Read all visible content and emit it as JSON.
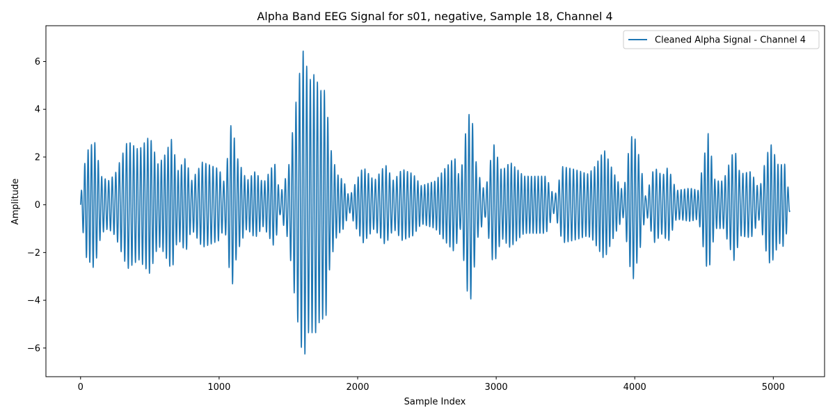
{
  "chart_data": {
    "type": "line",
    "title": "Alpha Band EEG Signal for s01, negative, Sample 18, Channel 4",
    "xlabel": "Sample Index",
    "ylabel": "Amplitude",
    "xlim": [
      -250,
      5370
    ],
    "ylim": [
      -7.2,
      7.5
    ],
    "xticks": [
      0,
      1000,
      2000,
      3000,
      4000,
      5000
    ],
    "yticks": [
      -6,
      -4,
      -2,
      0,
      2,
      4,
      6
    ],
    "grid": false,
    "legend_position": "top-right",
    "series": [
      {
        "name": "Cleaned Alpha Signal - Channel 4",
        "color": "#1f77b4",
        "sample_count": 5120,
        "oscillation_period_samples": 25,
        "envelope": [
          [
            0,
            0.3
          ],
          [
            40,
            2.2
          ],
          [
            100,
            2.7
          ],
          [
            150,
            1.2
          ],
          [
            200,
            1.0
          ],
          [
            250,
            1.3
          ],
          [
            340,
            2.7
          ],
          [
            420,
            2.3
          ],
          [
            500,
            2.9
          ],
          [
            560,
            1.7
          ],
          [
            600,
            2.0
          ],
          [
            660,
            2.8
          ],
          [
            700,
            1.4
          ],
          [
            760,
            2.0
          ],
          [
            800,
            1.0
          ],
          [
            880,
            1.8
          ],
          [
            960,
            1.6
          ],
          [
            1000,
            1.5
          ],
          [
            1040,
            0.9
          ],
          [
            1090,
            3.6
          ],
          [
            1130,
            2.0
          ],
          [
            1200,
            1.0
          ],
          [
            1260,
            1.4
          ],
          [
            1320,
            0.9
          ],
          [
            1400,
            1.8
          ],
          [
            1440,
            0.4
          ],
          [
            1500,
            1.5
          ],
          [
            1540,
            3.6
          ],
          [
            1580,
            5.5
          ],
          [
            1610,
            6.6
          ],
          [
            1650,
            5.2
          ],
          [
            1690,
            5.5
          ],
          [
            1730,
            4.8
          ],
          [
            1770,
            4.8
          ],
          [
            1800,
            2.5
          ],
          [
            1850,
            1.3
          ],
          [
            1900,
            1.0
          ],
          [
            1940,
            0.3
          ],
          [
            1990,
            1.0
          ],
          [
            2040,
            1.6
          ],
          [
            2120,
            1.0
          ],
          [
            2200,
            1.7
          ],
          [
            2260,
            1.0
          ],
          [
            2320,
            1.5
          ],
          [
            2400,
            1.3
          ],
          [
            2460,
            0.8
          ],
          [
            2560,
            1.0
          ],
          [
            2640,
            1.6
          ],
          [
            2700,
            2.0
          ],
          [
            2740,
            1.0
          ],
          [
            2790,
            3.6
          ],
          [
            2820,
            4.0
          ],
          [
            2860,
            1.5
          ],
          [
            2920,
            0.5
          ],
          [
            2980,
            2.6
          ],
          [
            3040,
            1.4
          ],
          [
            3100,
            1.8
          ],
          [
            3200,
            1.2
          ],
          [
            3280,
            1.2
          ],
          [
            3360,
            1.2
          ],
          [
            3420,
            0.3
          ],
          [
            3480,
            1.6
          ],
          [
            3560,
            1.5
          ],
          [
            3660,
            1.3
          ],
          [
            3700,
            1.5
          ],
          [
            3780,
            2.3
          ],
          [
            3860,
            1.2
          ],
          [
            3920,
            0.5
          ],
          [
            3960,
            2.5
          ],
          [
            3990,
            3.1
          ],
          [
            4040,
            1.8
          ],
          [
            4080,
            0.3
          ],
          [
            4140,
            1.6
          ],
          [
            4200,
            1.2
          ],
          [
            4240,
            1.6
          ],
          [
            4300,
            0.6
          ],
          [
            4400,
            0.7
          ],
          [
            4460,
            0.6
          ],
          [
            4500,
            2.0
          ],
          [
            4530,
            3.0
          ],
          [
            4580,
            1.0
          ],
          [
            4640,
            1.0
          ],
          [
            4680,
            1.7
          ],
          [
            4720,
            2.4
          ],
          [
            4760,
            1.3
          ],
          [
            4840,
            1.4
          ],
          [
            4900,
            0.6
          ],
          [
            4940,
            1.8
          ],
          [
            4980,
            2.6
          ],
          [
            5040,
            1.6
          ],
          [
            5080,
            1.8
          ],
          [
            5120,
            0.2
          ]
        ]
      }
    ]
  }
}
